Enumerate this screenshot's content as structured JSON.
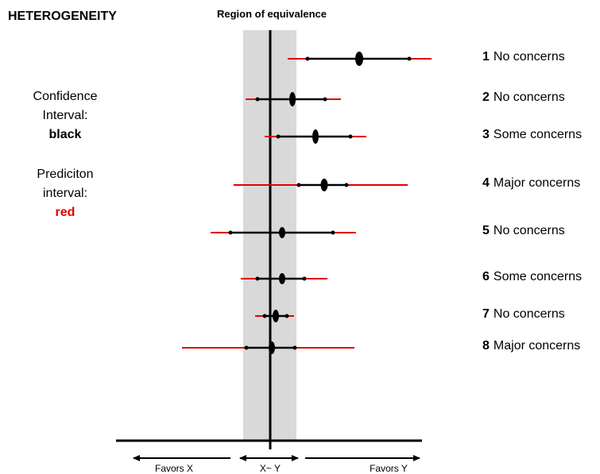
{
  "title": "HETEROGENEITY",
  "region_label": "Region of equivalence",
  "legend": {
    "ci_line1": "Confidence",
    "ci_line2": "Interval:",
    "ci_color_word": "black",
    "pi_line1": "Prediciton",
    "pi_line2": "interval:",
    "pi_color_word": "red"
  },
  "colors": {
    "ci": "#000000",
    "pi": "#e00000",
    "region": "#d9d9d9"
  },
  "axis_labels": {
    "left": "Favors X",
    "center": "X~ Y",
    "right": "Favors Y"
  },
  "rows": [
    {
      "number": "1",
      "label": "No concerns"
    },
    {
      "number": "2",
      "label": "No concerns"
    },
    {
      "number": "3",
      "label": "Some concerns"
    },
    {
      "number": "4",
      "label": "Major concerns"
    },
    {
      "number": "5",
      "label": "No concerns"
    },
    {
      "number": "6",
      "label": "Some concerns"
    },
    {
      "number": "7",
      "label": "No concerns"
    },
    {
      "number": "8",
      "label": "Major concerns"
    }
  ]
}
